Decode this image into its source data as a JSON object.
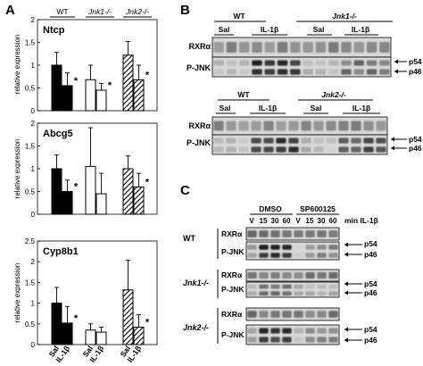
{
  "panels": {
    "A": "A",
    "B": "B",
    "C": "C"
  },
  "genotypes": {
    "wt": "WT",
    "jnk1": "Jnk1-/-",
    "jnk2": "Jnk2-/-"
  },
  "treatments": {
    "sal": "Sal",
    "il1b": "IL-1β"
  },
  "ylabel": "relative expression",
  "significance": "*",
  "chart_data": [
    {
      "type": "bar",
      "title": "Ntcp",
      "ylabel": "relative expression",
      "ylim": [
        0,
        2
      ],
      "yticks": [
        "0",
        "0.5",
        "1",
        "1.5",
        "2"
      ],
      "groups": [
        "WT",
        "Jnk1-/-",
        "Jnk2-/-"
      ],
      "categories": [
        "Sal",
        "IL-1β"
      ],
      "series": [
        {
          "group": "WT",
          "values": [
            1.0,
            0.55
          ],
          "errors": [
            0.28,
            0.28
          ],
          "fill": "#000000"
        },
        {
          "group": "Jnk1-/-",
          "values": [
            0.68,
            0.45
          ],
          "errors": [
            0.32,
            0.15
          ],
          "fill": "#ffffff"
        },
        {
          "group": "Jnk2-/-",
          "values": [
            1.22,
            0.68
          ],
          "errors": [
            0.3,
            0.32
          ],
          "fill": "hatch"
        }
      ],
      "significant": [
        false,
        true,
        false,
        true,
        false,
        true
      ]
    },
    {
      "type": "bar",
      "title": "Abcg5",
      "ylabel": "relative expression",
      "ylim": [
        0,
        2
      ],
      "yticks": [
        "0",
        "0.5",
        "1",
        "1.5",
        "2"
      ],
      "groups": [
        "WT",
        "Jnk1-/-",
        "Jnk2-/-"
      ],
      "categories": [
        "Sal",
        "IL-1β"
      ],
      "series": [
        {
          "group": "WT",
          "values": [
            1.0,
            0.5
          ],
          "errors": [
            0.3,
            0.25
          ],
          "fill": "#000000"
        },
        {
          "group": "Jnk1-/-",
          "values": [
            1.05,
            0.45
          ],
          "errors": [
            0.85,
            0.45
          ],
          "fill": "#ffffff"
        },
        {
          "group": "Jnk2-/-",
          "values": [
            1.0,
            0.6
          ],
          "errors": [
            0.28,
            0.3
          ],
          "fill": "hatch"
        }
      ],
      "significant": [
        false,
        true,
        false,
        false,
        false,
        true
      ]
    },
    {
      "type": "bar",
      "title": "Cyp8b1",
      "ylabel": "relative expression",
      "ylim": [
        0,
        2.5
      ],
      "yticks": [
        "0",
        "0.5",
        "1",
        "1.5",
        "2",
        "2.5"
      ],
      "groups": [
        "WT",
        "Jnk1-/-",
        "Jnk2-/-"
      ],
      "categories": [
        "Sal",
        "IL-1β"
      ],
      "series": [
        {
          "group": "WT",
          "values": [
            1.0,
            0.52
          ],
          "errors": [
            0.38,
            0.4
          ],
          "fill": "#000000"
        },
        {
          "group": "Jnk1-/-",
          "values": [
            0.35,
            0.3
          ],
          "errors": [
            0.15,
            0.12
          ],
          "fill": "#ffffff"
        },
        {
          "group": "Jnk2-/-",
          "values": [
            1.32,
            0.42
          ],
          "errors": [
            0.72,
            0.3
          ],
          "fill": "hatch"
        }
      ],
      "significant": [
        false,
        true,
        false,
        false,
        false,
        true
      ]
    }
  ],
  "blot_b": {
    "conditions": [
      "Sal",
      "IL-1β"
    ],
    "rows": [
      "RXRα",
      "P-JNK"
    ],
    "bands": [
      "p54",
      "p46"
    ],
    "comparison": [
      "WT",
      "Jnk1-/-",
      "WT",
      "Jnk2-/-"
    ]
  },
  "blot_c": {
    "treatments": [
      "DMSO",
      "SP600125"
    ],
    "timepoints": [
      "V",
      "15",
      "30",
      "60",
      "V",
      "15",
      "30",
      "60"
    ],
    "time_label": "min IL-1β",
    "genotypes": [
      "WT",
      "Jnk1-/-",
      "Jnk2-/-"
    ],
    "rows": [
      "RXRα",
      "P-JNK"
    ],
    "bands": [
      "p54",
      "p46"
    ]
  }
}
